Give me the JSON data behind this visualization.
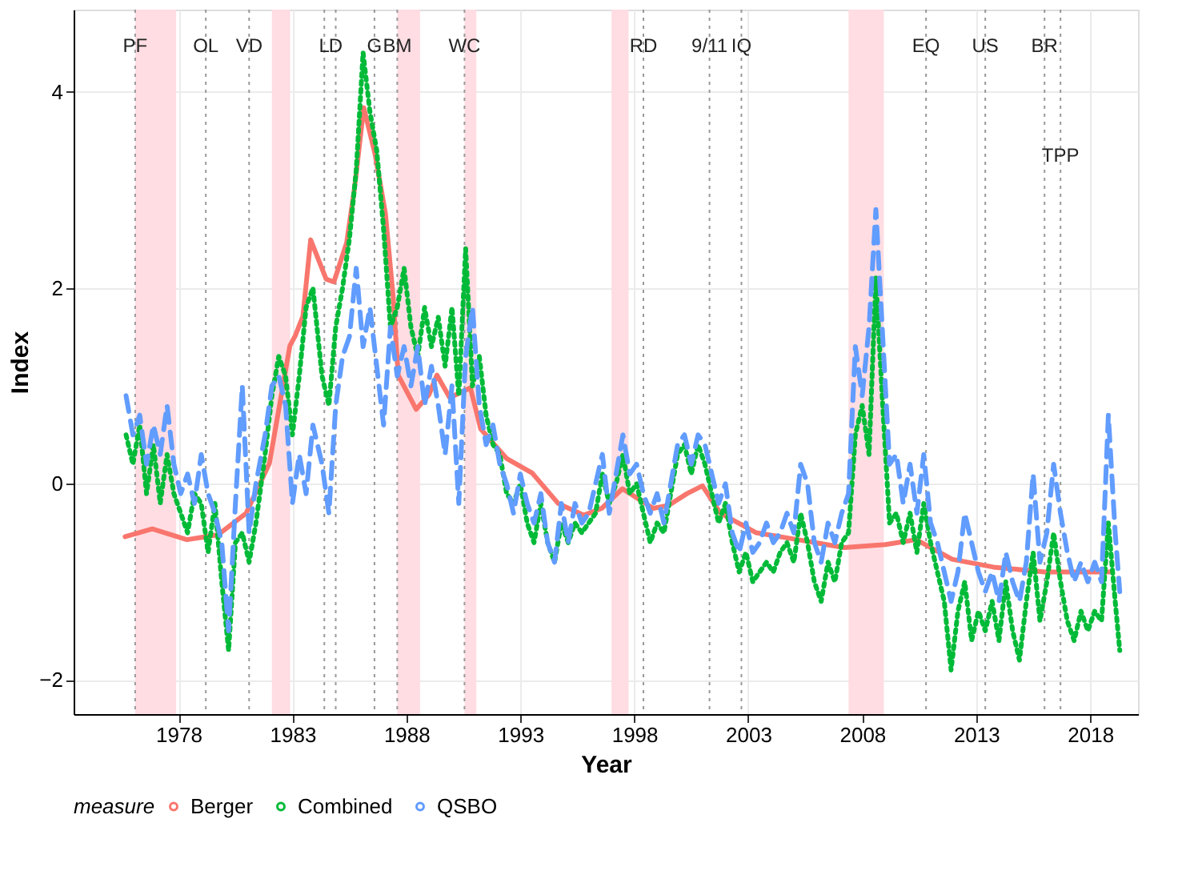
{
  "chart_data": {
    "type": "line",
    "xlabel": "Year",
    "ylabel": "Index",
    "legend_title": "measure",
    "legend": "bottom",
    "grid": true,
    "xlim": [
      1973.4,
      2020.1
    ],
    "xticks": [
      1978,
      1983,
      1988,
      1993,
      1998,
      2003,
      2008,
      2013,
      2018
    ],
    "ylim": [
      -2.35,
      4.84
    ],
    "yticks": [
      -2,
      0,
      2,
      4
    ],
    "series": [
      {
        "name": "Berger",
        "color": "#f8766d",
        "line_style": "solid",
        "x": [
          1975.66,
          1976.85,
          1978.37,
          1979.73,
          1980.97,
          1981.99,
          1982.89,
          1983.12,
          1983.46,
          1983.8,
          1984.48,
          1984.82,
          1985.38,
          1985.72,
          1986.13,
          1986.63,
          1987.08,
          1987.42,
          1987.64,
          1988.43,
          1988.99,
          1989.34,
          1989.9,
          1990.81,
          1991.26,
          1992.39,
          1993.52,
          1994.66,
          1995.78,
          1996.57,
          1997.48,
          1998.83,
          1999.51,
          2000.31,
          2000.99,
          2001.78,
          2003.36,
          2005.17,
          2007.21,
          2009.01,
          2010.37,
          2011.95,
          2013.76,
          2016.02,
          2018.85
        ],
        "values": [
          -0.54,
          -0.46,
          -0.57,
          -0.52,
          -0.3,
          0.21,
          1.41,
          1.51,
          1.71,
          2.49,
          2.09,
          2.06,
          2.46,
          3.01,
          3.84,
          3.36,
          2.76,
          1.91,
          1.11,
          0.76,
          0.91,
          1.11,
          0.88,
          0.98,
          0.56,
          0.26,
          0.11,
          -0.2,
          -0.32,
          -0.25,
          -0.05,
          -0.25,
          -0.22,
          -0.1,
          -0.02,
          -0.3,
          -0.5,
          -0.57,
          -0.65,
          -0.62,
          -0.57,
          -0.77,
          -0.85,
          -0.9,
          -0.9
        ]
      },
      {
        "name": "Combined",
        "color": "#00ba38",
        "line_style": "dotted",
        "x": [
          1975.7,
          1976.0,
          1976.3,
          1976.6,
          1976.9,
          1977.2,
          1977.5,
          1977.8,
          1978.1,
          1978.4,
          1978.7,
          1979.0,
          1979.3,
          1979.6,
          1979.9,
          1980.2,
          1980.5,
          1980.8,
          1981.1,
          1981.4,
          1981.8,
          1982.1,
          1982.4,
          1982.7,
          1983.0,
          1983.3,
          1983.6,
          1983.9,
          1984.3,
          1984.6,
          1984.9,
          1985.2,
          1985.5,
          1985.8,
          1986.1,
          1986.4,
          1986.7,
          1987.0,
          1987.3,
          1987.6,
          1987.9,
          1988.2,
          1988.5,
          1988.8,
          1989.1,
          1989.4,
          1989.7,
          1990.0,
          1990.3,
          1990.6,
          1990.9,
          1991.2,
          1991.5,
          1991.8,
          1992.1,
          1992.4,
          1992.7,
          1993.0,
          1993.3,
          1993.6,
          1993.9,
          1994.2,
          1994.5,
          1994.8,
          1995.1,
          1995.4,
          1995.7,
          1996.0,
          1996.3,
          1996.6,
          1996.9,
          1997.2,
          1997.5,
          1997.8,
          1998.1,
          1998.4,
          1998.7,
          1999.0,
          1999.3,
          1999.6,
          1999.9,
          2000.2,
          2000.5,
          2000.8,
          2001.1,
          2001.4,
          2001.7,
          2002.0,
          2002.3,
          2002.6,
          2002.9,
          2003.2,
          2003.5,
          2003.8,
          2004.1,
          2004.4,
          2004.7,
          2005.0,
          2005.3,
          2005.6,
          2005.9,
          2006.2,
          2006.5,
          2006.8,
          2007.1,
          2007.4,
          2007.7,
          2008.0,
          2008.3,
          2008.6,
          2008.9,
          2009.2,
          2009.5,
          2009.8,
          2010.1,
          2010.4,
          2010.7,
          2011.0,
          2011.3,
          2011.6,
          2011.9,
          2012.2,
          2012.5,
          2012.8,
          2013.1,
          2013.4,
          2013.7,
          2014.0,
          2014.3,
          2014.6,
          2014.9,
          2015.2,
          2015.5,
          2015.8,
          2016.1,
          2016.4,
          2016.7,
          2017.0,
          2017.3,
          2017.6,
          2017.9,
          2018.2,
          2018.5,
          2018.8,
          2019.1,
          2019.3
        ],
        "values": [
          0.5,
          0.2,
          0.6,
          -0.1,
          0.4,
          -0.2,
          0.3,
          -0.1,
          -0.3,
          -0.5,
          -0.1,
          -0.2,
          -0.7,
          -0.2,
          -1.0,
          -1.7,
          -0.6,
          -0.5,
          -0.8,
          -0.4,
          0.3,
          0.9,
          1.3,
          1.1,
          0.5,
          1.1,
          1.8,
          2.0,
          1.1,
          0.8,
          1.6,
          2.0,
          2.5,
          3.2,
          4.4,
          3.8,
          3.4,
          2.6,
          1.6,
          1.8,
          2.2,
          1.6,
          1.3,
          1.8,
          1.4,
          1.7,
          1.2,
          1.8,
          0.9,
          2.4,
          1.0,
          1.3,
          0.7,
          0.4,
          0.3,
          -0.1,
          -0.2,
          0.0,
          -0.4,
          -0.6,
          -0.2,
          -0.6,
          -0.8,
          -0.4,
          -0.6,
          -0.4,
          -0.5,
          -0.4,
          -0.3,
          0.1,
          -0.2,
          0.0,
          0.3,
          -0.1,
          0.0,
          -0.3,
          -0.6,
          -0.4,
          -0.5,
          -0.1,
          0.3,
          0.4,
          0.1,
          0.4,
          0.2,
          -0.1,
          -0.4,
          -0.2,
          -0.6,
          -0.9,
          -0.7,
          -1.0,
          -0.9,
          -0.8,
          -0.9,
          -0.7,
          -0.6,
          -0.8,
          -0.3,
          -0.6,
          -1.0,
          -1.2,
          -0.8,
          -1.0,
          -0.6,
          -0.5,
          0.5,
          0.8,
          0.3,
          2.1,
          0.8,
          -0.4,
          -0.3,
          -0.6,
          -0.3,
          -0.7,
          -0.2,
          -0.6,
          -0.9,
          -1.2,
          -1.9,
          -1.3,
          -1.0,
          -1.6,
          -1.3,
          -1.5,
          -1.2,
          -1.6,
          -1.0,
          -1.5,
          -1.8,
          -1.2,
          -0.7,
          -1.4,
          -1.0,
          -0.5,
          -1.0,
          -1.4,
          -1.6,
          -1.3,
          -1.5,
          -1.3,
          -1.4,
          -0.4,
          -1.2,
          -1.7
        ]
      },
      {
        "name": "QSBO",
        "color": "#619cff",
        "line_style": "dashed",
        "x": [
          1975.7,
          1976.0,
          1976.3,
          1976.6,
          1976.9,
          1977.2,
          1977.5,
          1977.8,
          1978.1,
          1978.4,
          1978.7,
          1979.0,
          1979.3,
          1979.6,
          1979.9,
          1980.2,
          1980.5,
          1980.8,
          1981.1,
          1981.4,
          1981.8,
          1982.1,
          1982.4,
          1982.7,
          1983.0,
          1983.3,
          1983.6,
          1983.9,
          1984.3,
          1984.6,
          1984.9,
          1985.2,
          1985.5,
          1985.8,
          1986.1,
          1986.4,
          1986.7,
          1987.0,
          1987.3,
          1987.6,
          1987.9,
          1988.2,
          1988.5,
          1988.8,
          1989.1,
          1989.4,
          1989.7,
          1990.0,
          1990.3,
          1990.6,
          1990.9,
          1991.2,
          1991.5,
          1991.8,
          1992.1,
          1992.4,
          1992.7,
          1993.0,
          1993.3,
          1993.6,
          1993.9,
          1994.2,
          1994.5,
          1994.8,
          1995.1,
          1995.4,
          1995.7,
          1996.0,
          1996.3,
          1996.6,
          1996.9,
          1997.2,
          1997.5,
          1997.8,
          1998.1,
          1998.4,
          1998.7,
          1999.0,
          1999.3,
          1999.6,
          1999.9,
          2000.2,
          2000.5,
          2000.8,
          2001.1,
          2001.4,
          2001.7,
          2002.0,
          2002.3,
          2002.6,
          2002.9,
          2003.2,
          2003.5,
          2003.8,
          2004.1,
          2004.4,
          2004.7,
          2005.0,
          2005.3,
          2005.6,
          2005.9,
          2006.2,
          2006.5,
          2006.8,
          2007.1,
          2007.4,
          2007.7,
          2008.0,
          2008.3,
          2008.6,
          2008.9,
          2009.2,
          2009.5,
          2009.8,
          2010.1,
          2010.4,
          2010.7,
          2011.0,
          2011.3,
          2011.6,
          2011.9,
          2012.2,
          2012.5,
          2012.8,
          2013.1,
          2013.4,
          2013.7,
          2014.0,
          2014.3,
          2014.6,
          2014.9,
          2015.2,
          2015.5,
          2015.8,
          2016.1,
          2016.4,
          2016.7,
          2017.0,
          2017.3,
          2017.6,
          2017.9,
          2018.2,
          2018.5,
          2018.8,
          2019.1,
          2019.3
        ],
        "values": [
          0.9,
          0.5,
          0.7,
          0.2,
          0.6,
          0.3,
          0.8,
          0.2,
          -0.1,
          0.1,
          -0.2,
          0.3,
          -0.1,
          -0.3,
          -0.6,
          -1.5,
          -0.2,
          1.0,
          -0.5,
          0.0,
          0.5,
          1.0,
          1.1,
          0.8,
          -0.2,
          0.3,
          -0.1,
          0.6,
          0.2,
          -0.3,
          0.8,
          1.3,
          1.5,
          2.2,
          1.4,
          1.8,
          1.2,
          0.6,
          1.6,
          1.1,
          1.4,
          1.0,
          1.4,
          0.8,
          1.2,
          0.8,
          0.3,
          1.0,
          -0.2,
          1.3,
          1.8,
          0.8,
          0.4,
          0.6,
          0.2,
          0.0,
          -0.3,
          0.1,
          -0.2,
          -0.4,
          -0.1,
          -0.6,
          -0.8,
          -0.2,
          -0.6,
          -0.2,
          -0.4,
          -0.3,
          0.0,
          0.3,
          -0.3,
          0.1,
          0.5,
          0.1,
          0.2,
          -0.1,
          -0.3,
          -0.1,
          -0.4,
          0.0,
          0.4,
          0.5,
          0.2,
          0.5,
          0.4,
          0.1,
          -0.2,
          0.0,
          -0.5,
          -0.7,
          -0.4,
          -0.7,
          -0.6,
          -0.4,
          -0.6,
          -0.5,
          -0.3,
          -0.5,
          0.2,
          0.0,
          -0.6,
          -0.8,
          -0.4,
          -0.6,
          -0.3,
          -0.1,
          1.4,
          0.9,
          1.6,
          2.8,
          1.5,
          0.2,
          0.3,
          -0.2,
          0.2,
          -0.3,
          0.3,
          -0.4,
          -0.6,
          -0.9,
          -1.2,
          -0.9,
          -0.3,
          -0.6,
          -0.9,
          -1.1,
          -0.9,
          -1.2,
          -0.7,
          -1.0,
          -1.2,
          -0.8,
          0.1,
          -0.8,
          -0.5,
          0.2,
          -0.3,
          -0.7,
          -1.0,
          -0.8,
          -1.0,
          -0.8,
          -1.0,
          0.7,
          -0.5,
          -1.1
        ]
      }
    ],
    "bands": [
      {
        "axis": "x",
        "from": 1976.1,
        "to": 1977.9,
        "color": "#ffdde3"
      },
      {
        "axis": "x",
        "from": 1982.1,
        "to": 1982.9,
        "color": "#ffdde3"
      },
      {
        "axis": "x",
        "from": 1987.6,
        "to": 1988.6,
        "color": "#ffdde3"
      },
      {
        "axis": "x",
        "from": 1990.55,
        "to": 1991.07,
        "color": "#ffdde3"
      },
      {
        "axis": "x",
        "from": 1997.0,
        "to": 1997.75,
        "color": "#ffdde3"
      },
      {
        "axis": "x",
        "from": 2007.4,
        "to": 2008.95,
        "color": "#ffdde3"
      }
    ],
    "ref_lines": [
      {
        "axis": "x",
        "value": 1976.1,
        "color": "#999999",
        "line_style": "dotted"
      },
      {
        "axis": "x",
        "value": 1979.2,
        "color": "#999999",
        "line_style": "dotted"
      },
      {
        "axis": "x",
        "value": 1981.1,
        "color": "#999999",
        "line_style": "dotted"
      },
      {
        "axis": "x",
        "value": 1984.4,
        "color": "#999999",
        "line_style": "dotted"
      },
      {
        "axis": "x",
        "value": 1984.9,
        "color": "#999999",
        "line_style": "dotted"
      },
      {
        "axis": "x",
        "value": 1986.6,
        "color": "#999999",
        "line_style": "dotted"
      },
      {
        "axis": "x",
        "value": 1987.6,
        "color": "#999999",
        "line_style": "dotted"
      },
      {
        "axis": "x",
        "value": 1990.55,
        "color": "#999999",
        "line_style": "dotted"
      },
      {
        "axis": "x",
        "value": 1998.4,
        "color": "#999999",
        "line_style": "dotted"
      },
      {
        "axis": "x",
        "value": 2001.3,
        "color": "#999999",
        "line_style": "dotted"
      },
      {
        "axis": "x",
        "value": 2002.7,
        "color": "#999999",
        "line_style": "dotted"
      },
      {
        "axis": "x",
        "value": 2010.8,
        "color": "#999999",
        "line_style": "dotted"
      },
      {
        "axis": "x",
        "value": 2013.4,
        "color": "#999999",
        "line_style": "dotted"
      },
      {
        "axis": "x",
        "value": 2016.0,
        "color": "#999999",
        "line_style": "dotted"
      },
      {
        "axis": "x",
        "value": 2016.7,
        "color": "#999999",
        "line_style": "dotted"
      }
    ],
    "annotations": [
      {
        "text": "PF",
        "x": 1976.1,
        "y": 4.47
      },
      {
        "text": "OL",
        "x": 1979.2,
        "y": 4.47
      },
      {
        "text": "VD",
        "x": 1981.1,
        "y": 4.47
      },
      {
        "text": "L",
        "x": 1984.4,
        "y": 4.47
      },
      {
        "text": "D",
        "x": 1984.9,
        "y": 4.47
      },
      {
        "text": "G",
        "x": 1986.6,
        "y": 4.47
      },
      {
        "text": "BM",
        "x": 1987.6,
        "y": 4.47
      },
      {
        "text": "WC",
        "x": 1990.55,
        "y": 4.47
      },
      {
        "text": "RD",
        "x": 1998.4,
        "y": 4.47
      },
      {
        "text": "9/11",
        "x": 2001.3,
        "y": 4.47
      },
      {
        "text": "IQ",
        "x": 2002.7,
        "y": 4.47
      },
      {
        "text": "EQ",
        "x": 2010.8,
        "y": 4.47
      },
      {
        "text": "US",
        "x": 2013.4,
        "y": 4.47
      },
      {
        "text": "BR",
        "x": 2016.0,
        "y": 4.47
      },
      {
        "text": "TPP",
        "x": 2016.7,
        "y": 3.35
      }
    ]
  }
}
